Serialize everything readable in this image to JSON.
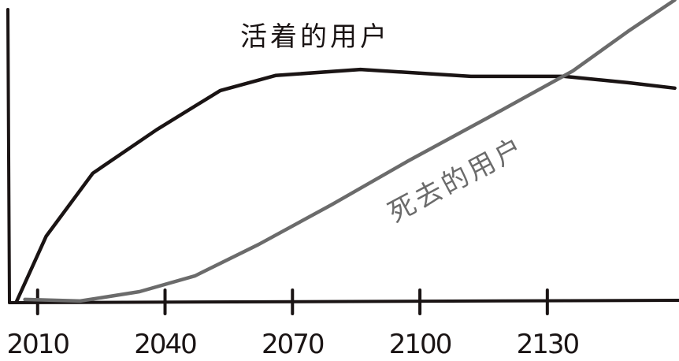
{
  "chart_data": {
    "type": "line",
    "x": [
      2005,
      2012,
      2023,
      2038,
      2053,
      2066,
      2086,
      2112,
      2134,
      2149,
      2160
    ],
    "series": [
      {
        "name": "活着的用户",
        "color": "#1a1414",
        "x": [
          2005,
          2012,
          2023,
          2038,
          2053,
          2066,
          2086,
          2112,
          2134,
          2149,
          2160
        ],
        "values": [
          0,
          21.7,
          42.6,
          57,
          70,
          75,
          77,
          74.7,
          74.7,
          72.6,
          70.8
        ]
      },
      {
        "name": "死去的用户",
        "color": "#6b6b6b",
        "x": [
          2007,
          2020,
          2034,
          2047,
          2062,
          2079,
          2097,
          2116,
          2136,
          2149,
          2160
        ],
        "values": [
          0.8,
          0.3,
          3.4,
          8.6,
          19,
          32,
          46.5,
          61,
          76.5,
          89.6,
          100
        ]
      }
    ],
    "xlim": [
      2003,
      2161
    ],
    "ylim": [
      0,
      100
    ],
    "xticks": [
      2010,
      2040,
      2070,
      2100,
      2130
    ]
  }
}
